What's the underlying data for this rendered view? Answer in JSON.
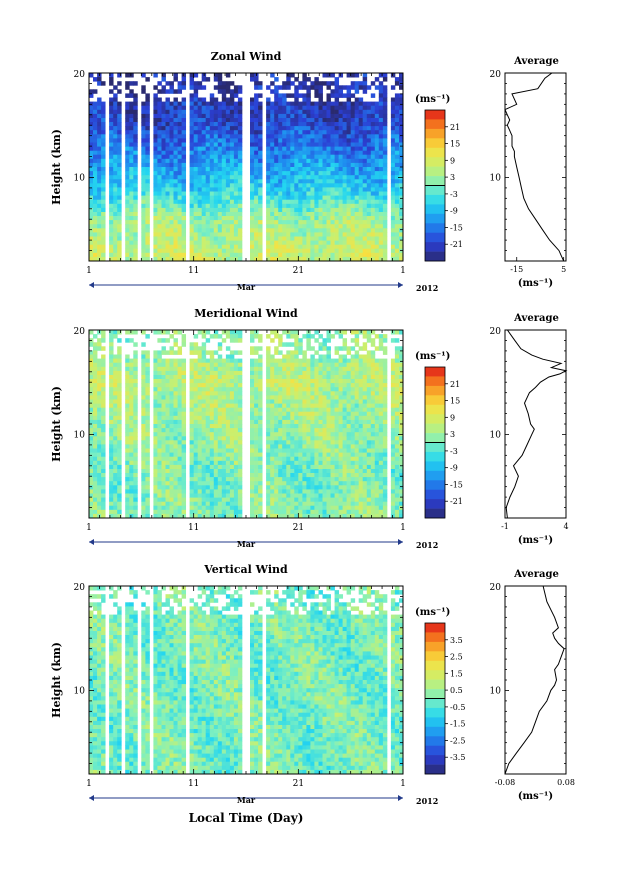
{
  "figure": {
    "x_axis_label": "Local Time (Day)",
    "month_label": "Mar",
    "year_label": "2012",
    "unit_label": "(ms⁻¹)",
    "average_title": "Average",
    "x_ticks": [
      "1",
      "11",
      "21",
      "1"
    ],
    "y_label": "Height (km)",
    "y_ticks": [
      "20",
      "10"
    ]
  },
  "panels": [
    {
      "title": "Zonal Wind",
      "colorbar_ticks": [
        "21",
        "15",
        "9",
        "3",
        "-3",
        "-9",
        "-15",
        "-21"
      ],
      "avg_ticks": [
        "-15",
        "5"
      ]
    },
    {
      "title": "Meridional Wind",
      "colorbar_ticks": [
        "21",
        "15",
        "9",
        "3",
        "-3",
        "-9",
        "-15",
        "-21"
      ],
      "avg_ticks": [
        "-1",
        "4"
      ]
    },
    {
      "title": "Vertical Wind",
      "colorbar_ticks": [
        "3.5",
        "2.5",
        "1.5",
        "0.5",
        "-0.5",
        "-1.5",
        "-2.5",
        "-3.5"
      ],
      "avg_ticks": [
        "-0.08",
        "0.08"
      ]
    }
  ],
  "chart_data": [
    {
      "type": "heatmap",
      "title": "Zonal Wind",
      "xlabel": "",
      "ylabel": "Height (km)",
      "x_range_days": [
        1,
        31
      ],
      "y_range_km": [
        2,
        20
      ],
      "colorbar_range": [
        -24,
        24
      ],
      "colorbar_unit": "ms-1",
      "approx_field_by_height": {
        "heights_km": [
          3,
          6,
          9,
          12,
          15,
          18
        ],
        "values": [
          6,
          3,
          -6,
          -12,
          -18,
          -21
        ]
      },
      "data_gaps_days": [
        2.7,
        4.3,
        5.8,
        7.1,
        10.4,
        16.0,
        17.6,
        29.6
      ]
    },
    {
      "type": "line",
      "title": "Average",
      "xlabel": "(ms-1)",
      "ylabel": "",
      "xlim": [
        -20,
        6
      ],
      "ylim": [
        2,
        20
      ],
      "x": [
        5,
        4,
        3,
        1,
        -1,
        -4,
        -7,
        -10,
        -12,
        -13,
        -14,
        -15,
        -16,
        -16,
        -17,
        -17,
        -17,
        -18,
        -19,
        -18,
        -19,
        -20,
        -15,
        -17,
        -6,
        -3,
        0
      ],
      "y": [
        2,
        2.5,
        3,
        3.5,
        4,
        5,
        6,
        7,
        8,
        9,
        10,
        11,
        12,
        12.5,
        13,
        13.5,
        14,
        14.5,
        15,
        15.5,
        16,
        16.5,
        17,
        18,
        18.5,
        19.5,
        20
      ]
    },
    {
      "type": "heatmap",
      "title": "Meridional Wind",
      "xlabel": "",
      "ylabel": "Height (km)",
      "x_range_days": [
        1,
        31
      ],
      "y_range_km": [
        2,
        20
      ],
      "colorbar_range": [
        -24,
        24
      ],
      "colorbar_unit": "ms-1",
      "approx_field_by_height": {
        "heights_km": [
          3,
          6,
          9,
          12,
          15,
          18
        ],
        "values": [
          1,
          0,
          2,
          3,
          5,
          2
        ]
      },
      "data_gaps_days": [
        2.7,
        4.3,
        5.8,
        7.1,
        10.4,
        16.0,
        17.6,
        29.6
      ]
    },
    {
      "type": "line",
      "title": "Average",
      "xlabel": "(ms-1)",
      "ylabel": "",
      "xlim": [
        -1,
        4
      ],
      "ylim": [
        2,
        20
      ],
      "x": [
        -0.8,
        -0.9,
        -0.6,
        -0.2,
        0.1,
        -0.3,
        0.4,
        0.8,
        1.2,
        1.4,
        1.1,
        0.9,
        0.6,
        1.0,
        1.5,
        1.9,
        2.6,
        3.5,
        4.0,
        2.8,
        3.6,
        2.1,
        1.2,
        0.3,
        -0.2,
        -0.8
      ],
      "y": [
        2,
        3,
        4,
        5,
        6,
        7,
        8,
        9,
        10,
        10.5,
        11,
        12,
        13,
        14,
        14.5,
        15,
        15.5,
        15.8,
        16.1,
        16.4,
        16.8,
        17.2,
        17.6,
        18.2,
        19,
        20
      ]
    },
    {
      "type": "heatmap",
      "title": "Vertical Wind",
      "xlabel": "Local Time (Day)",
      "ylabel": "Height (km)",
      "x_range_days": [
        1,
        31
      ],
      "y_range_km": [
        2,
        20
      ],
      "colorbar_range": [
        -4,
        4
      ],
      "colorbar_unit": "ms-1",
      "approx_field_by_height": {
        "heights_km": [
          3,
          6,
          9,
          12,
          15,
          18
        ],
        "values": [
          0,
          0,
          0,
          0,
          0,
          0
        ]
      },
      "data_gaps_days": [
        2.7,
        4.3,
        5.8,
        7.1,
        10.4,
        16.0,
        17.6,
        29.6
      ]
    },
    {
      "type": "line",
      "title": "Average",
      "xlabel": "(ms-1)",
      "ylabel": "",
      "xlim": [
        -0.08,
        0.08
      ],
      "ylim": [
        2,
        20
      ],
      "x": [
        -0.08,
        -0.07,
        -0.05,
        -0.03,
        -0.01,
        0.0,
        0.01,
        0.03,
        0.04,
        0.05,
        0.055,
        0.05,
        0.06,
        0.065,
        0.07,
        0.075,
        0.06,
        0.05,
        0.045,
        0.06,
        0.05,
        0.03,
        0.02
      ],
      "y": [
        2,
        3,
        4,
        5,
        6,
        7,
        8,
        9,
        10,
        10.5,
        11,
        12,
        12.5,
        13,
        13.5,
        14,
        14.5,
        15,
        15.5,
        16,
        17,
        18.5,
        20
      ]
    }
  ]
}
